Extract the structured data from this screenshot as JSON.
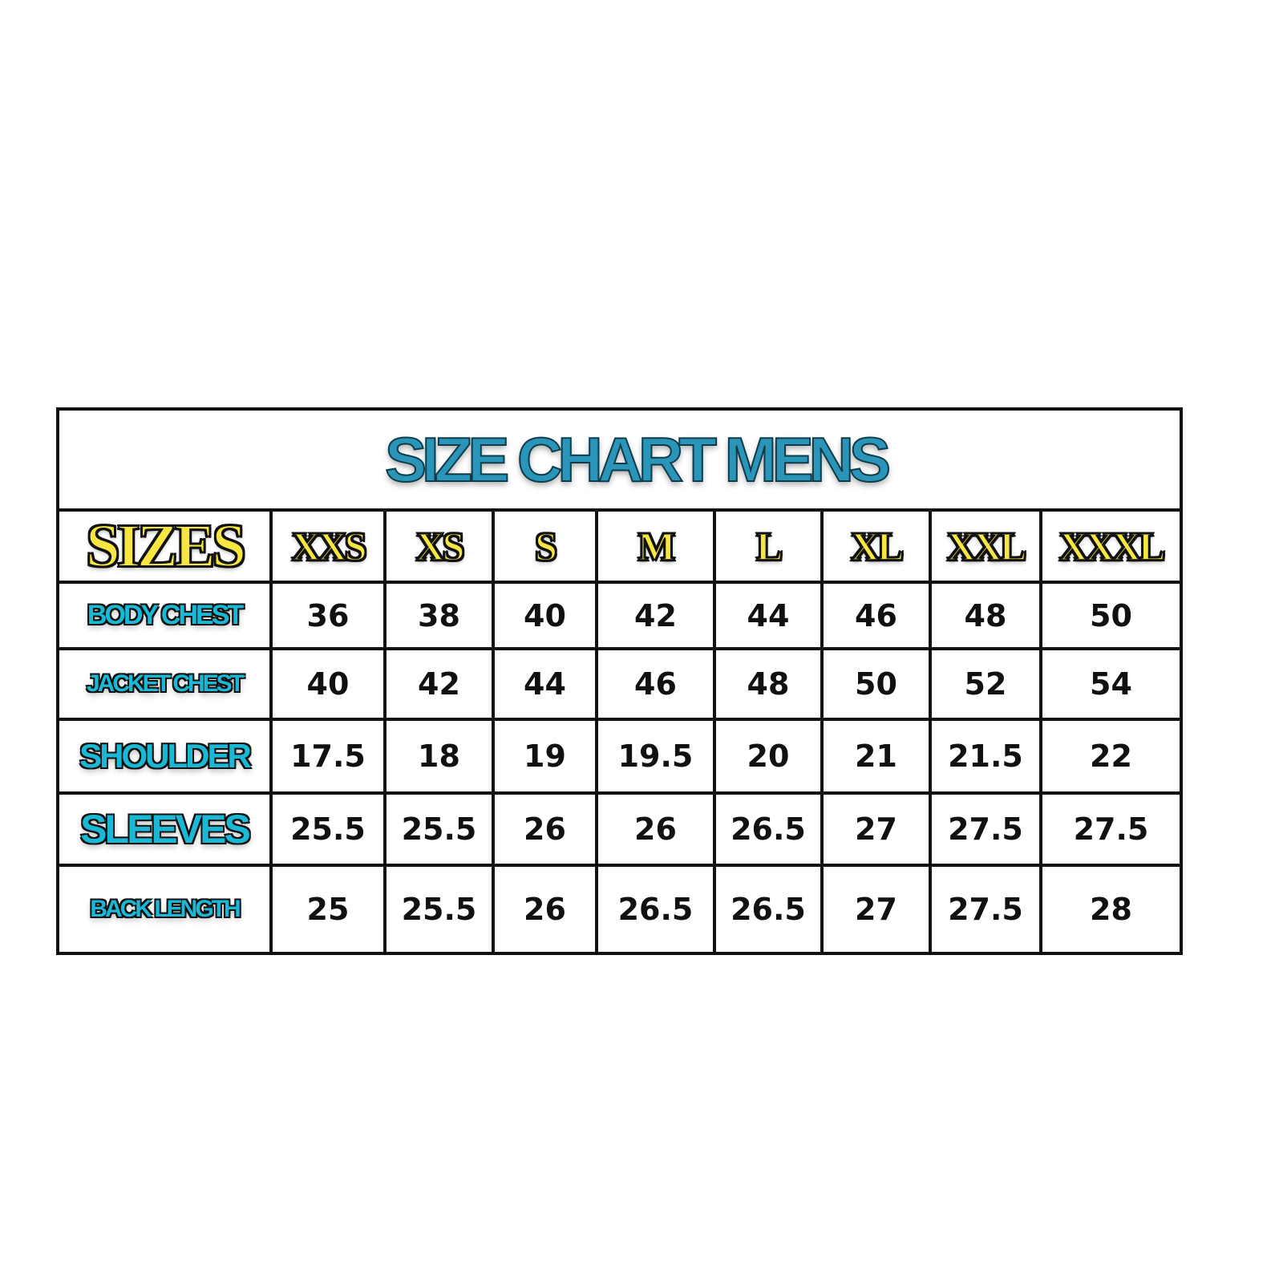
{
  "chart_data": {
    "type": "table",
    "title": "SIZE CHART MENS",
    "corner_label": "SIZES",
    "columns": [
      "XXS",
      "XS",
      "S",
      "M",
      "L",
      "XL",
      "XXL",
      "XXXL"
    ],
    "rows": [
      {
        "label": "BODY CHEST",
        "values": [
          "36",
          "38",
          "40",
          "42",
          "44",
          "46",
          "48",
          "50"
        ]
      },
      {
        "label": "JACKET CHEST",
        "values": [
          "40",
          "42",
          "44",
          "46",
          "48",
          "50",
          "52",
          "54"
        ]
      },
      {
        "label": "SHOULDER",
        "values": [
          "17.5",
          "18",
          "19",
          "19.5",
          "20",
          "21",
          "21.5",
          "22"
        ]
      },
      {
        "label": "SLEEVES",
        "values": [
          "25.5",
          "25.5",
          "26",
          "26",
          "26.5",
          "27",
          "27.5",
          "27.5"
        ]
      },
      {
        "label": "BACK LENGTH",
        "values": [
          "25",
          "25.5",
          "26",
          "26.5",
          "26.5",
          "27",
          "27.5",
          "28"
        ]
      }
    ],
    "colors": {
      "title": "#2a95b8",
      "sizes": "#f5e642",
      "row_labels": "#1ab8d4",
      "grid": "#111111"
    }
  }
}
